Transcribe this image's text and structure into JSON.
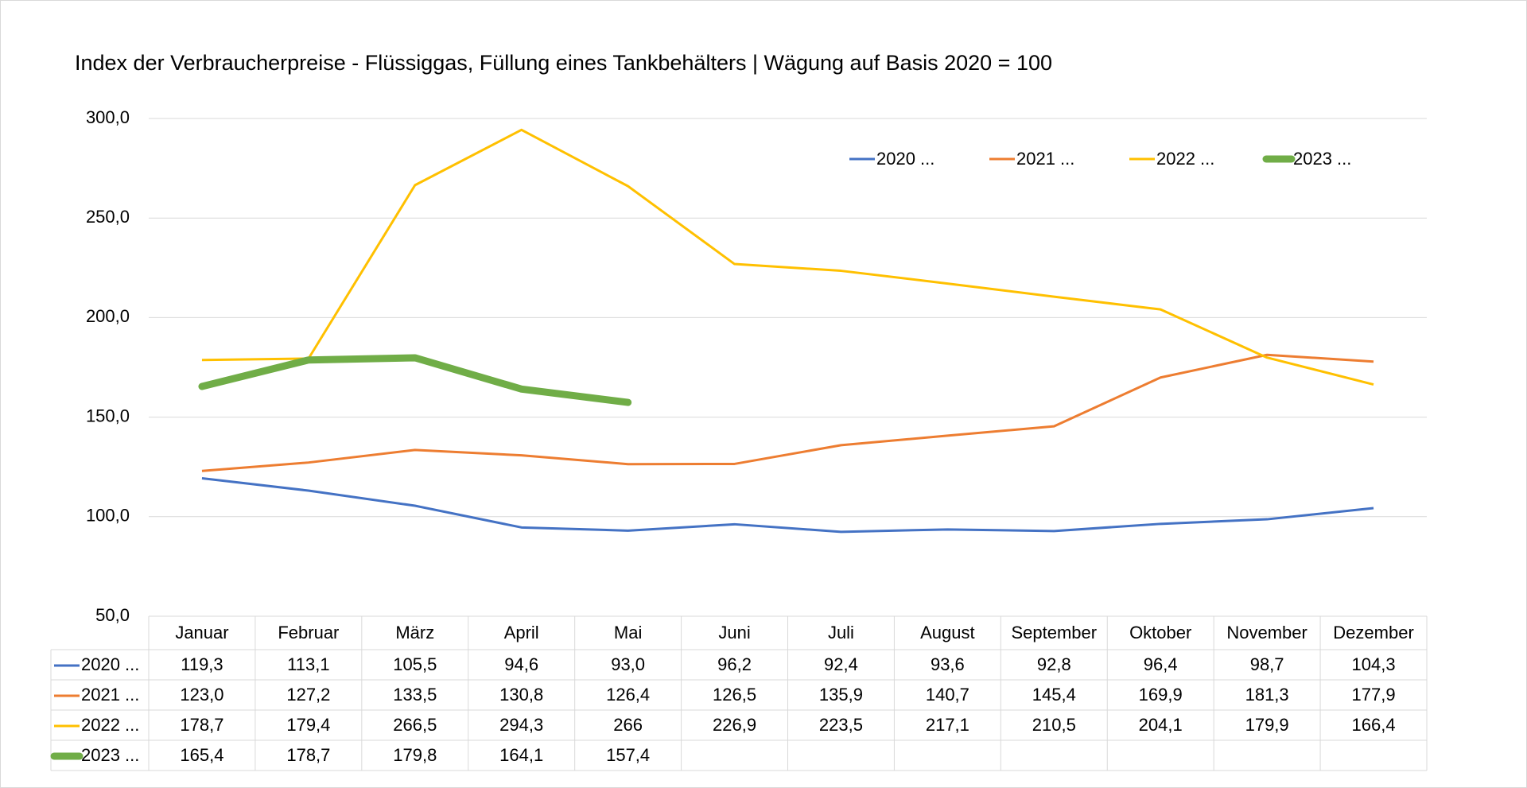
{
  "chart_data": {
    "type": "line",
    "title": "Index der Verbraucherpreise - Flüssiggas, Füllung eines Tankbehälters | Wägung auf Basis 2020 = 100",
    "categories": [
      "Januar",
      "Februar",
      "März",
      "April",
      "Mai",
      "Juni",
      "Juli",
      "August",
      "September",
      "Oktober",
      "November",
      "Dezember"
    ],
    "series": [
      {
        "name": "2020 ...",
        "color": "#4472c4",
        "width": 3,
        "values": [
          119.3,
          113.1,
          105.5,
          94.6,
          93.0,
          96.2,
          92.4,
          93.6,
          92.8,
          96.4,
          98.7,
          104.3
        ],
        "value_labels": [
          "119,3",
          "113,1",
          "105,5",
          "94,6",
          "93,0",
          "96,2",
          "92,4",
          "93,6",
          "92,8",
          "96,4",
          "98,7",
          "104,3"
        ]
      },
      {
        "name": "2021 ...",
        "color": "#ed7d31",
        "width": 3,
        "values": [
          123.0,
          127.2,
          133.5,
          130.8,
          126.4,
          126.5,
          135.9,
          140.7,
          145.4,
          169.9,
          181.3,
          177.9
        ],
        "value_labels": [
          "123,0",
          "127,2",
          "133,5",
          "130,8",
          "126,4",
          "126,5",
          "135,9",
          "140,7",
          "145,4",
          "169,9",
          "181,3",
          "177,9"
        ]
      },
      {
        "name": "2022 ...",
        "color": "#ffc000",
        "width": 3,
        "values": [
          178.7,
          179.4,
          266.5,
          294.3,
          266,
          226.9,
          223.5,
          217.1,
          210.5,
          204.1,
          179.9,
          166.4
        ],
        "value_labels": [
          "178,7",
          "179,4",
          "266,5",
          "294,3",
          "266",
          "226,9",
          "223,5",
          "217,1",
          "210,5",
          "204,1",
          "179,9",
          "166,4"
        ]
      },
      {
        "name": "2023 ...",
        "color": "#70ad47",
        "width": 9,
        "values": [
          165.4,
          178.7,
          179.8,
          164.1,
          157.4,
          null,
          null,
          null,
          null,
          null,
          null,
          null
        ],
        "value_labels": [
          "165,4",
          "178,7",
          "179,8",
          "164,1",
          "157,4",
          null,
          null,
          null,
          null,
          null,
          null,
          null
        ]
      }
    ],
    "ylim": [
      50,
      300
    ],
    "yticks": [
      {
        "value": 50,
        "label": "50,0"
      },
      {
        "value": 100,
        "label": "100,0"
      },
      {
        "value": 150,
        "label": "150,0"
      },
      {
        "value": 200,
        "label": "200,0"
      },
      {
        "value": 250,
        "label": "250,0"
      },
      {
        "value": 300,
        "label": "300,0"
      }
    ],
    "grid": true,
    "legend": "top-right"
  }
}
